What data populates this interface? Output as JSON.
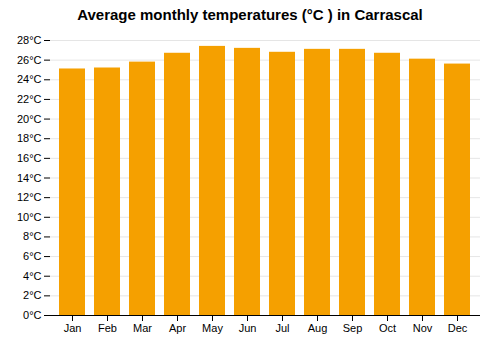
{
  "chart_data": {
    "type": "bar",
    "title": "Average monthly temperatures (°C ) in Carrascal",
    "categories": [
      "Jan",
      "Feb",
      "Mar",
      "Apr",
      "May",
      "Jun",
      "Jul",
      "Aug",
      "Sep",
      "Oct",
      "Nov",
      "Dec"
    ],
    "values": [
      25.1,
      25.2,
      25.8,
      26.7,
      27.4,
      27.2,
      26.8,
      27.1,
      27.1,
      26.7,
      26.1,
      25.6
    ],
    "color": "#F5A000",
    "ylim": [
      0,
      28
    ],
    "yticks": [
      {
        "value": 0,
        "label": "0°C"
      },
      {
        "value": 2,
        "label": "2°C"
      },
      {
        "value": 4,
        "label": "4°C"
      },
      {
        "value": 6,
        "label": "6°C"
      },
      {
        "value": 8,
        "label": "8°C"
      },
      {
        "value": 10,
        "label": "10°C"
      },
      {
        "value": 12,
        "label": "12°C"
      },
      {
        "value": 14,
        "label": "14°C"
      },
      {
        "value": 16,
        "label": "16°C"
      },
      {
        "value": 18,
        "label": "18°C"
      },
      {
        "value": 20,
        "label": "20°C"
      },
      {
        "value": 22,
        "label": "22°C"
      },
      {
        "value": 24,
        "label": "24°C"
      },
      {
        "value": 26,
        "label": "26°C"
      },
      {
        "value": 28,
        "label": "28°C"
      }
    ],
    "grid": true
  }
}
